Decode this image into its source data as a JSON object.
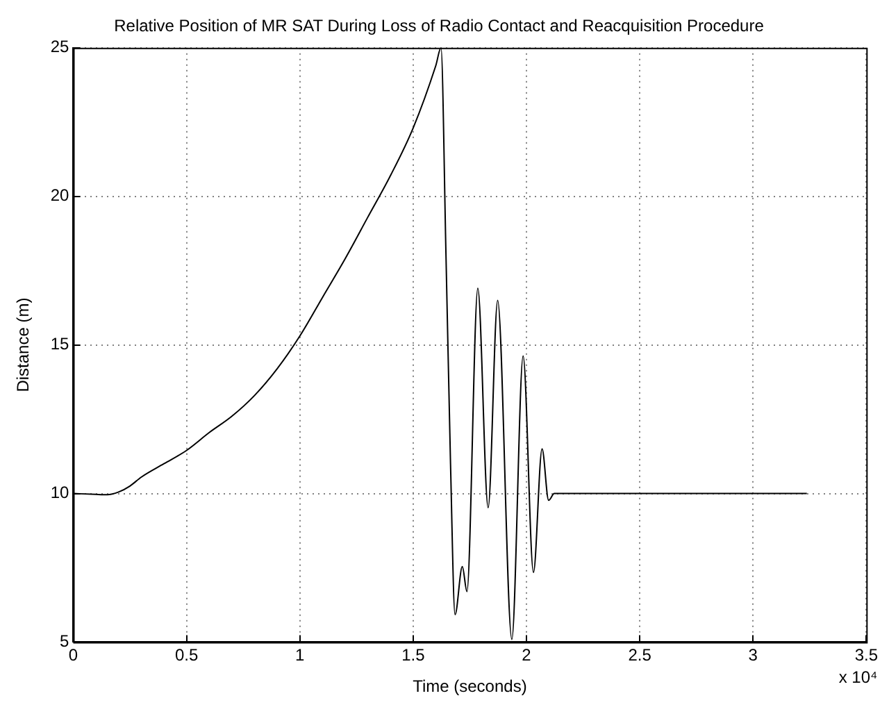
{
  "chart_data": {
    "type": "line",
    "title": "Relative Position of MR SAT During Loss of Radio Contact and Reacquisition Procedure",
    "xlabel": "Time (seconds)",
    "ylabel": "Distance (m)",
    "x": [
      0,
      0.1,
      0.15,
      0.2,
      0.25,
      0.3,
      0.4,
      0.5,
      0.6,
      0.7,
      0.8,
      0.9,
      1.0,
      1.1,
      1.2,
      1.3,
      1.4,
      1.5,
      1.6,
      1.623,
      1.645,
      1.665,
      1.685,
      1.717,
      1.7375,
      1.7854,
      1.831,
      1.873,
      1.9356,
      1.9854,
      2.031,
      2.069,
      2.098,
      2.123,
      2.2,
      2.4,
      2.6,
      2.8,
      3.0,
      3.2375
    ],
    "values": [
      10,
      9.97,
      9.96,
      10.05,
      10.25,
      10.55,
      11.0,
      11.45,
      12.05,
      12.6,
      13.3,
      14.2,
      15.3,
      16.6,
      17.9,
      19.3,
      20.7,
      22.3,
      24.4,
      25,
      18,
      11,
      5.92,
      7.54,
      6.7,
      16.91,
      9.52,
      16.5,
      5.09,
      14.63,
      7.34,
      11.5,
      9.77,
      10,
      10,
      10,
      10,
      10,
      10,
      10
    ],
    "color": "#000000",
    "xlim": [
      0,
      3.5
    ],
    "ylim": [
      5,
      25
    ],
    "xticks": [
      0,
      0.5,
      1,
      1.5,
      2,
      2.5,
      3,
      3.5
    ],
    "yticks": [
      5,
      10,
      15,
      20,
      25
    ],
    "annotations": [
      "x 10⁴"
    ],
    "grid": true,
    "legend": false,
    "marker": "none",
    "line_style": "solid"
  }
}
